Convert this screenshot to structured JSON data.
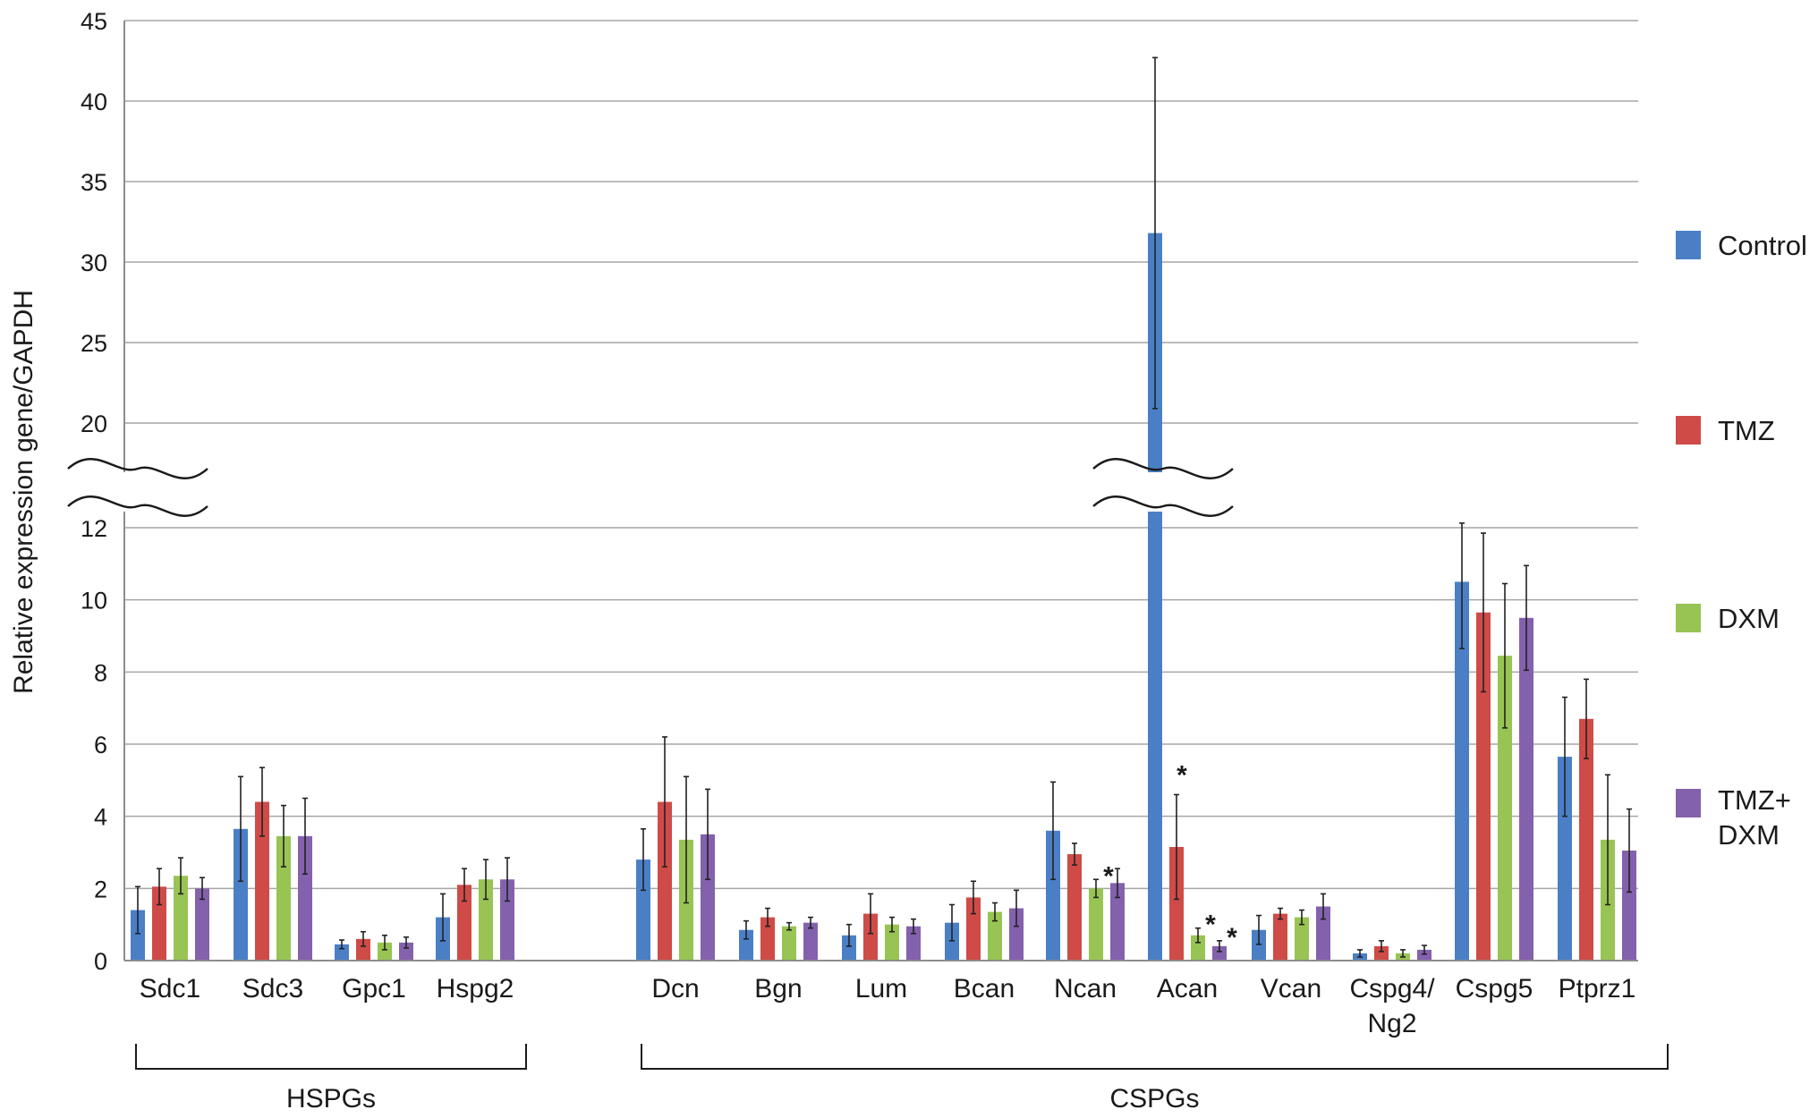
{
  "chart_data": {
    "type": "bar",
    "ylabel": "Relative expression gene/GAPDH",
    "y_axis": {
      "lower_segment": {
        "range": [
          0,
          12
        ],
        "ticks": [
          "0",
          "2",
          "4",
          "6",
          "8",
          "10",
          "12"
        ]
      },
      "upper_segment": {
        "range": [
          20,
          45
        ],
        "ticks": [
          "20",
          "25",
          "30",
          "35",
          "40",
          "45"
        ]
      },
      "axis_break": true
    },
    "grid": true,
    "legend_position": "right",
    "colors": {
      "Control": "#4a7fc6",
      "TMZ": "#cf4b47",
      "DXM": "#98c453",
      "TMZ+DXM": "#8461ad"
    },
    "categories": [
      "Sdc1",
      "Sdc3",
      "Gpc1",
      "Hspg2",
      "Dcn",
      "Bgn",
      "Lum",
      "Bcan",
      "Ncan",
      "Acan",
      "Vcan",
      "Cspg4/\nNg2",
      "Cspg5",
      "Ptprz1"
    ],
    "legend": [
      {
        "key": "Control",
        "label": "Control"
      },
      {
        "key": "TMZ",
        "label": "TMZ"
      },
      {
        "key": "DXM",
        "label": "DXM"
      },
      {
        "key": "TMZ+DXM",
        "label": "TMZ+\nDXM"
      }
    ],
    "series": [
      {
        "key": "Control",
        "values": [
          1.4,
          3.65,
          0.45,
          1.2,
          2.8,
          0.85,
          0.7,
          1.05,
          3.6,
          31.8,
          0.85,
          0.2,
          10.5,
          5.65
        ],
        "errors": [
          0.65,
          1.45,
          0.12,
          0.65,
          0.85,
          0.25,
          0.3,
          0.5,
          1.35,
          10.9,
          0.4,
          0.1,
          1.85,
          1.65
        ]
      },
      {
        "key": "TMZ",
        "values": [
          2.05,
          4.4,
          0.6,
          2.1,
          4.4,
          1.2,
          1.3,
          1.75,
          2.95,
          3.15,
          1.3,
          0.4,
          9.65,
          6.7
        ],
        "errors": [
          0.5,
          0.95,
          0.2,
          0.45,
          1.8,
          0.25,
          0.55,
          0.45,
          0.3,
          1.45,
          0.15,
          0.15,
          2.2,
          1.1
        ]
      },
      {
        "key": "DXM",
        "values": [
          2.35,
          3.45,
          0.5,
          2.25,
          3.35,
          0.95,
          1.0,
          1.35,
          2.0,
          0.7,
          1.2,
          0.2,
          8.45,
          3.35
        ],
        "errors": [
          0.5,
          0.85,
          0.2,
          0.55,
          1.75,
          0.1,
          0.2,
          0.25,
          0.25,
          0.2,
          0.2,
          0.1,
          2.0,
          1.8
        ]
      },
      {
        "key": "TMZ+DXM",
        "values": [
          2.0,
          3.45,
          0.5,
          2.25,
          3.5,
          1.05,
          0.95,
          1.45,
          2.15,
          0.4,
          1.5,
          0.3,
          9.5,
          3.05
        ],
        "errors": [
          0.3,
          1.05,
          0.15,
          0.6,
          1.25,
          0.15,
          0.2,
          0.5,
          0.4,
          0.15,
          0.35,
          0.12,
          1.45,
          1.15
        ]
      }
    ],
    "significance": [
      {
        "category": "Ncan",
        "series": "DXM",
        "label": "*"
      },
      {
        "category": "Acan",
        "series": "TMZ",
        "label": "*"
      },
      {
        "category": "Acan",
        "series": "DXM",
        "label": "*"
      },
      {
        "category": "Acan",
        "series": "TMZ+DXM",
        "label": "*"
      }
    ],
    "groups": [
      {
        "label": "HSPGs",
        "from": "Sdc1",
        "to": "Hspg2"
      },
      {
        "label": "CSPGs",
        "from": "Dcn",
        "to": "Ptprz1"
      }
    ]
  }
}
